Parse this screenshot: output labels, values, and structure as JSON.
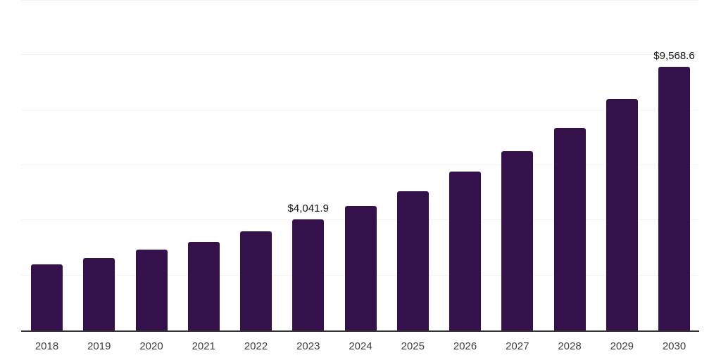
{
  "page": {
    "background": "#ffffff"
  },
  "chart_data": {
    "type": "bar",
    "title": "",
    "xlabel": "",
    "ylabel": "",
    "categories": [
      "2018",
      "2019",
      "2020",
      "2021",
      "2022",
      "2023",
      "2024",
      "2025",
      "2026",
      "2027",
      "2028",
      "2029",
      "2030"
    ],
    "values": [
      2395,
      2625,
      2930,
      3230,
      3605,
      4041.9,
      4525,
      5065,
      5760,
      6505,
      7355,
      8395,
      9568.6
    ],
    "value_labels": {
      "2023": "$4,041.9",
      "2030": "$9,568.6"
    },
    "ylim": [
      0,
      12000
    ],
    "gridline_step": 2000,
    "grid": "horizontal-only",
    "legend": "none",
    "y_axis_tick_labels": "none",
    "colors": {
      "bar": "#35114c",
      "axis": "#333333",
      "gridline": "#f2f2f4",
      "tick_label": "#3d3d3d",
      "value_label": "#111111"
    }
  }
}
